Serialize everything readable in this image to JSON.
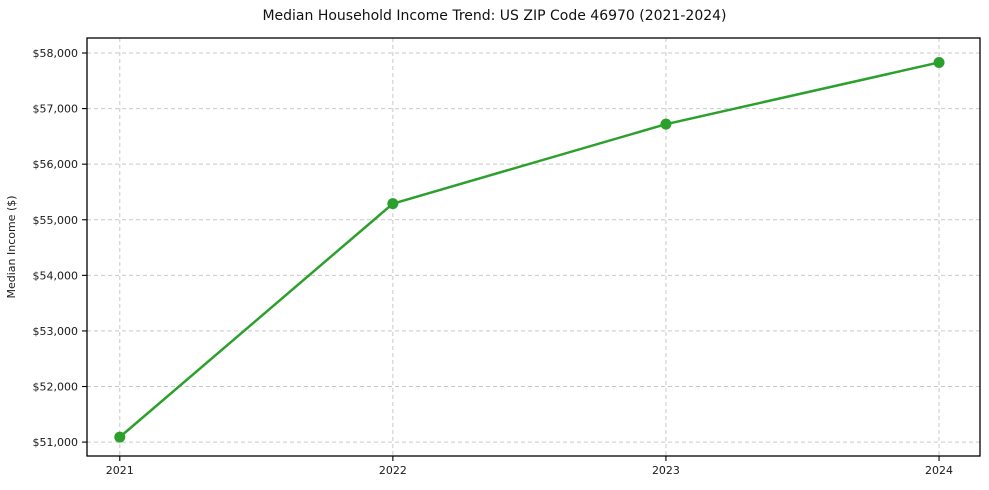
{
  "chart_data": {
    "type": "line",
    "title": "Median Household Income Trend: US ZIP Code 46970 (2021-2024)",
    "xlabel": "",
    "ylabel": "Median Income ($)",
    "x": [
      2021,
      2022,
      2023,
      2024
    ],
    "xtick_labels": [
      "2021",
      "2022",
      "2023",
      "2024"
    ],
    "values": [
      51090,
      55290,
      56720,
      57830
    ],
    "yticks": [
      51000,
      52000,
      53000,
      54000,
      55000,
      56000,
      57000,
      58000
    ],
    "ytick_labels": [
      "$51,000",
      "$52,000",
      "$53,000",
      "$54,000",
      "$55,000",
      "$56,000",
      "$57,000",
      "$58,000"
    ],
    "xlim": [
      2020.88,
      2024.15
    ],
    "ylim": [
      50750,
      58270
    ],
    "grid": true,
    "legend": false,
    "line_color": "#2ca02c",
    "marker": "circle",
    "grid_color": "#c9c9c9",
    "grid_style": "dashed",
    "axis_color": "#000000",
    "text_color": "#1a1a1a"
  }
}
